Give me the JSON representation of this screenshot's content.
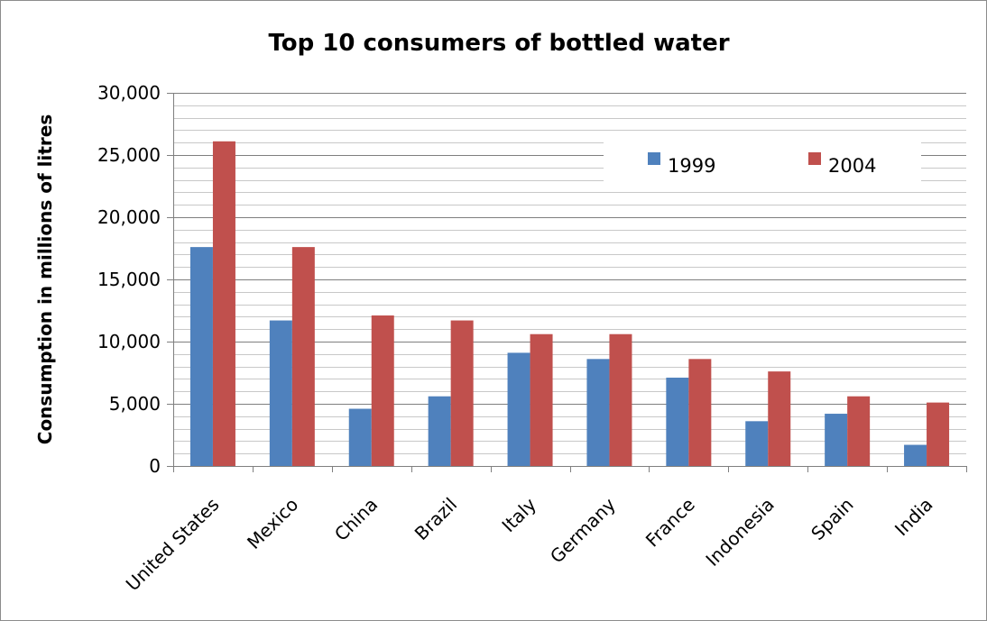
{
  "chart_data": {
    "type": "bar",
    "title": "Top 10 consumers of bottled water",
    "xlabel": "",
    "ylabel": "Consumption in millions of litres",
    "categories": [
      "United States",
      "Mexico",
      "China",
      "Brazil",
      "Italy",
      "Germany",
      "France",
      "Indonesia",
      "Spain",
      "India"
    ],
    "series": [
      {
        "name": "1999",
        "color": "#4f81bd",
        "values": [
          17600,
          11700,
          4600,
          5600,
          9100,
          8600,
          7100,
          3600,
          4200,
          1700
        ]
      },
      {
        "name": "2004",
        "color": "#c0504d",
        "values": [
          26100,
          17600,
          12100,
          11700,
          10600,
          10600,
          8600,
          7600,
          5600,
          5100
        ]
      }
    ],
    "ylim": [
      0,
      30000
    ],
    "yticks": [
      0,
      5000,
      10000,
      15000,
      20000,
      25000,
      30000
    ],
    "ytick_labels": [
      "0",
      "5,000",
      "10,000",
      "15,000",
      "20,000",
      "25,000",
      "30,000"
    ],
    "minor_grid_step": 1000,
    "grid": true,
    "legend_position": "top-right"
  }
}
